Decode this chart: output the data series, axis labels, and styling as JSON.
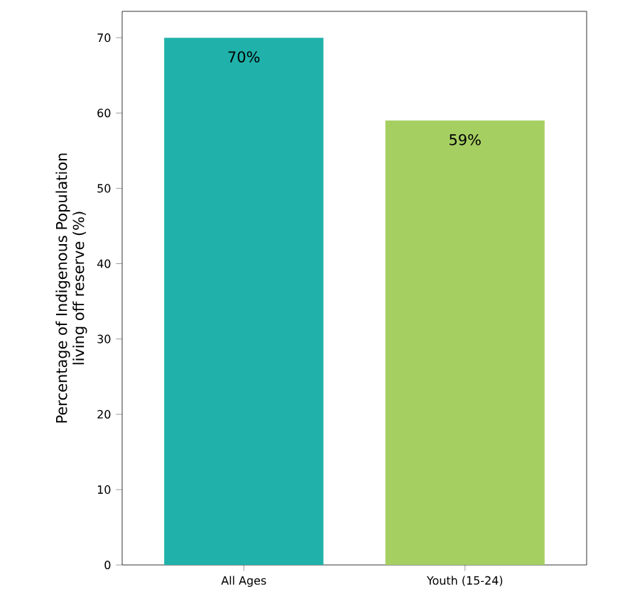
{
  "chart_data": {
    "type": "bar",
    "ylabel": "Percentage of Indigenous Population\nliving off reserve (%)",
    "categories": [
      "All Ages",
      "Youth (15-24)"
    ],
    "values": [
      70,
      59
    ],
    "colors": [
      "#20b2aa",
      "#a6cf62"
    ],
    "value_labels": [
      "70%",
      "59%"
    ],
    "ylim": [
      0,
      73.5
    ],
    "yticks": [
      0,
      10,
      20,
      30,
      40,
      50,
      60,
      70
    ]
  }
}
